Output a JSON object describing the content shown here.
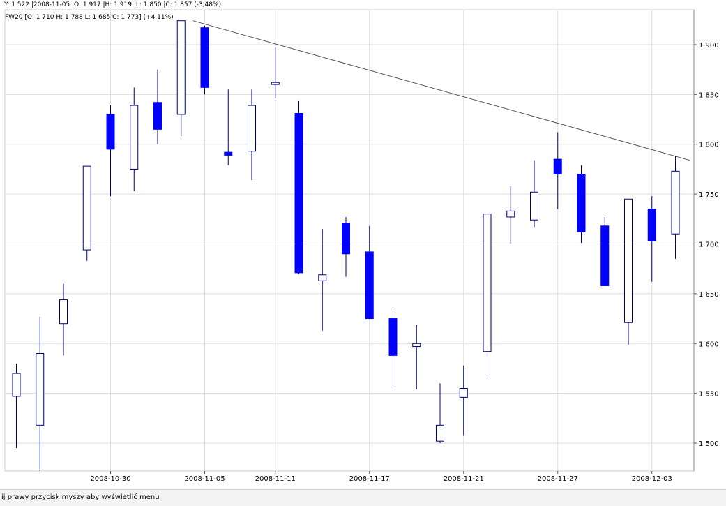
{
  "info_bar": {
    "text": "Y: 1 522 |2008-11-05 |O: 1 917 |H: 1 919 |L: 1 850 |C: 1 857 (-3,48%)"
  },
  "legend": {
    "text": "FW20 [O: 1 710  H: 1 788  L: 1 685  C: 1 773] (+4,11%)"
  },
  "status_bar": {
    "text": "ij prawy przycisk myszy aby wyświetlić menu"
  },
  "colors": {
    "bearish_fill": "#0000ff",
    "candle_outline": "#00007f",
    "grid": "#dddddd",
    "trendline": "#555555"
  },
  "chart_data": {
    "type": "candlestick",
    "series_name": "FW20",
    "ylim": [
      1472,
      1935
    ],
    "y_ticks": [
      "1 500",
      "1 550",
      "1 600",
      "1 650",
      "1 700",
      "1 750",
      "1 800",
      "1 850",
      "1 900"
    ],
    "x_tick_labels": [
      {
        "label": "2008-10-30",
        "at": 4
      },
      {
        "label": "2008-11-05",
        "at": 8
      },
      {
        "label": "2008-11-11",
        "at": 11
      },
      {
        "label": "2008-11-17",
        "at": 15
      },
      {
        "label": "2008-11-21",
        "at": 19
      },
      {
        "label": "2008-11-27",
        "at": 23
      },
      {
        "label": "2008-12-03",
        "at": 27
      }
    ],
    "candles": [
      {
        "o": 1547,
        "h": 1580,
        "l": 1495,
        "c": 1570
      },
      {
        "o": 1518,
        "h": 1627,
        "l": 1472,
        "c": 1590
      },
      {
        "o": 1620,
        "h": 1660,
        "l": 1588,
        "c": 1644
      },
      {
        "o": 1694,
        "h": 1778,
        "l": 1683,
        "c": 1778
      },
      {
        "o": 1830,
        "h": 1839,
        "l": 1748,
        "c": 1795
      },
      {
        "o": 1775,
        "h": 1857,
        "l": 1753,
        "c": 1839
      },
      {
        "o": 1842,
        "h": 1875,
        "l": 1800,
        "c": 1815
      },
      {
        "o": 1830,
        "h": 1924,
        "l": 1808,
        "c": 1924
      },
      {
        "o": 1917,
        "h": 1919,
        "l": 1850,
        "c": 1857
      },
      {
        "o": 1792,
        "h": 1855,
        "l": 1779,
        "c": 1789
      },
      {
        "o": 1793,
        "h": 1855,
        "l": 1764,
        "c": 1839
      },
      {
        "o": 1860,
        "h": 1897,
        "l": 1846,
        "c": 1862
      },
      {
        "o": 1831,
        "h": 1844,
        "l": 1670,
        "c": 1671
      },
      {
        "o": 1663,
        "h": 1715,
        "l": 1613,
        "c": 1669
      },
      {
        "o": 1721,
        "h": 1727,
        "l": 1667,
        "c": 1690
      },
      {
        "o": 1692,
        "h": 1718,
        "l": 1625,
        "c": 1625
      },
      {
        "o": 1625,
        "h": 1635,
        "l": 1556,
        "c": 1588
      },
      {
        "o": 1597,
        "h": 1619,
        "l": 1554,
        "c": 1600
      },
      {
        "o": 1502,
        "h": 1560,
        "l": 1500,
        "c": 1518
      },
      {
        "o": 1546,
        "h": 1578,
        "l": 1508,
        "c": 1555
      },
      {
        "o": 1592,
        "h": 1730,
        "l": 1567,
        "c": 1730
      },
      {
        "o": 1727,
        "h": 1758,
        "l": 1700,
        "c": 1733
      },
      {
        "o": 1724,
        "h": 1784,
        "l": 1717,
        "c": 1752
      },
      {
        "o": 1785,
        "h": 1812,
        "l": 1735,
        "c": 1770
      },
      {
        "o": 1770,
        "h": 1779,
        "l": 1701,
        "c": 1712
      },
      {
        "o": 1718,
        "h": 1727,
        "l": 1658,
        "c": 1658
      },
      {
        "o": 1621,
        "h": 1745,
        "l": 1599,
        "c": 1745
      },
      {
        "o": 1735,
        "h": 1748,
        "l": 1662,
        "c": 1703
      },
      {
        "o": 1710,
        "h": 1788,
        "l": 1685,
        "c": 1773
      }
    ],
    "trendline": {
      "from": {
        "index": 7.5,
        "value": 1924
      },
      "to": {
        "index": 28.6,
        "value": 1784
      }
    }
  }
}
